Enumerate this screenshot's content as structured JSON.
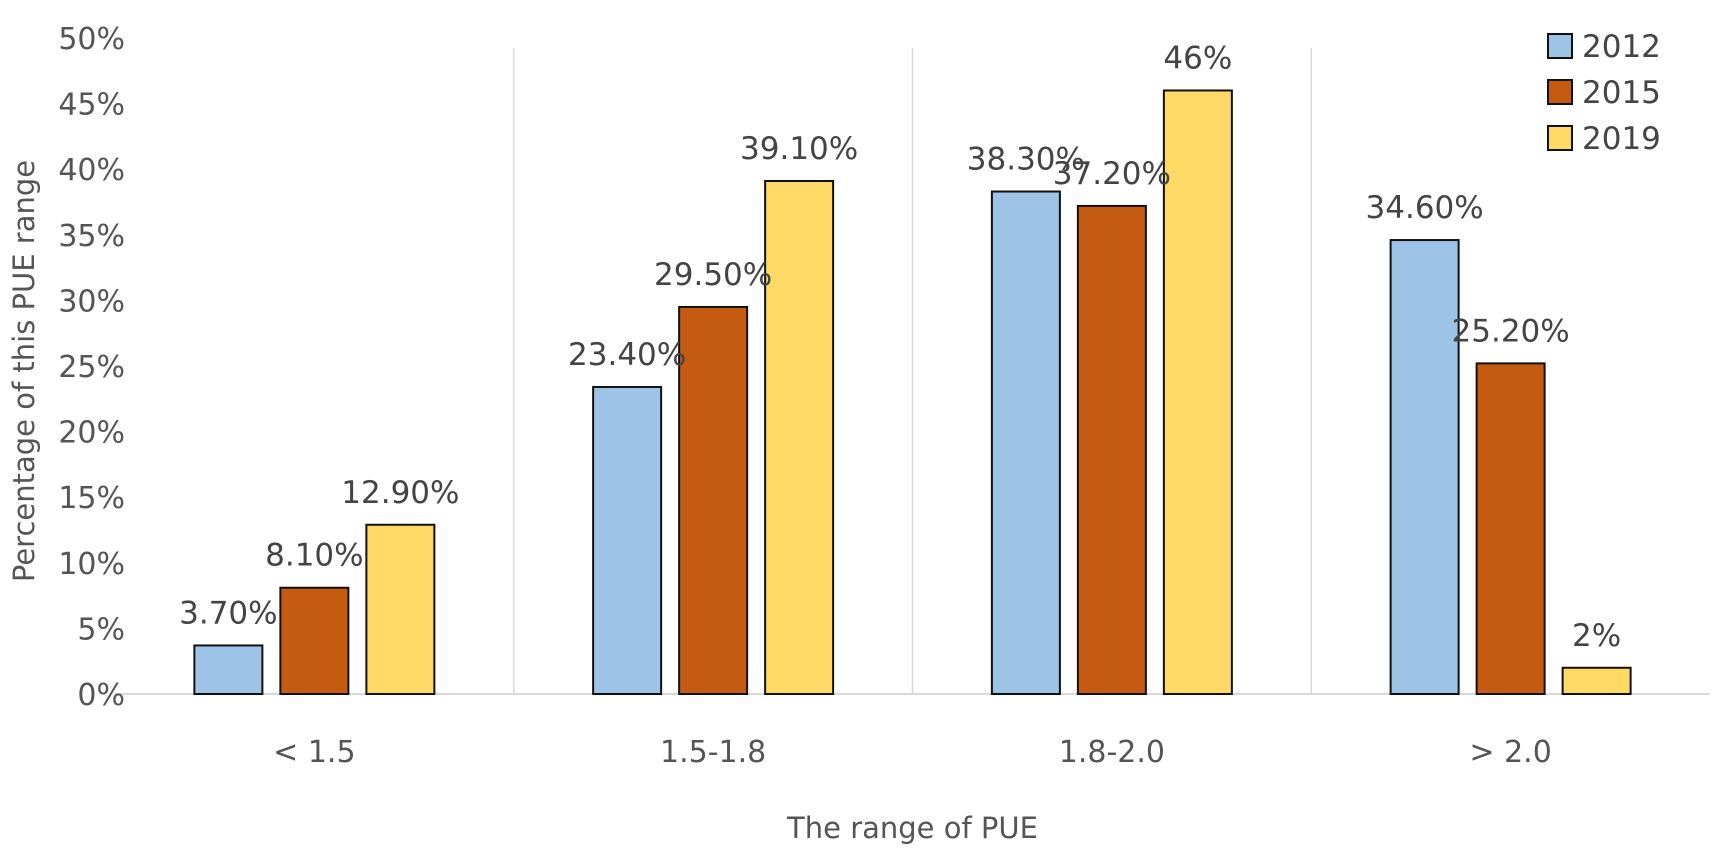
{
  "chart_data": {
    "type": "bar",
    "title": "",
    "xlabel": "The range of PUE",
    "ylabel": "Percentage of this PUE range",
    "ylim": [
      0,
      50
    ],
    "yticks": [
      0,
      5,
      10,
      15,
      20,
      25,
      30,
      35,
      40,
      45,
      50
    ],
    "ytick_labels": [
      "0%",
      "5%",
      "10%",
      "15%",
      "20%",
      "25%",
      "30%",
      "35%",
      "40%",
      "45%",
      "50%"
    ],
    "categories": [
      "< 1.5",
      "1.5-1.8",
      "1.8-2.0",
      "> 2.0"
    ],
    "series": [
      {
        "name": "2012",
        "color": "#9dc3e6",
        "values": [
          3.7,
          23.4,
          38.3,
          34.6
        ],
        "labels": [
          "3.70%",
          "23.40%",
          "38.30%",
          "34.60%"
        ]
      },
      {
        "name": "2015",
        "color": "#c55a11",
        "values": [
          8.1,
          29.5,
          37.2,
          25.2
        ],
        "labels": [
          "8.10%",
          "29.50%",
          "37.20%",
          "25.20%"
        ]
      },
      {
        "name": "2019",
        "color": "#ffd966",
        "values": [
          12.9,
          39.1,
          46,
          2
        ],
        "labels": [
          "12.90%",
          "39.10%",
          "46%",
          "2%"
        ]
      }
    ],
    "grid": "vertical category separators",
    "legend_position": "top-right"
  }
}
